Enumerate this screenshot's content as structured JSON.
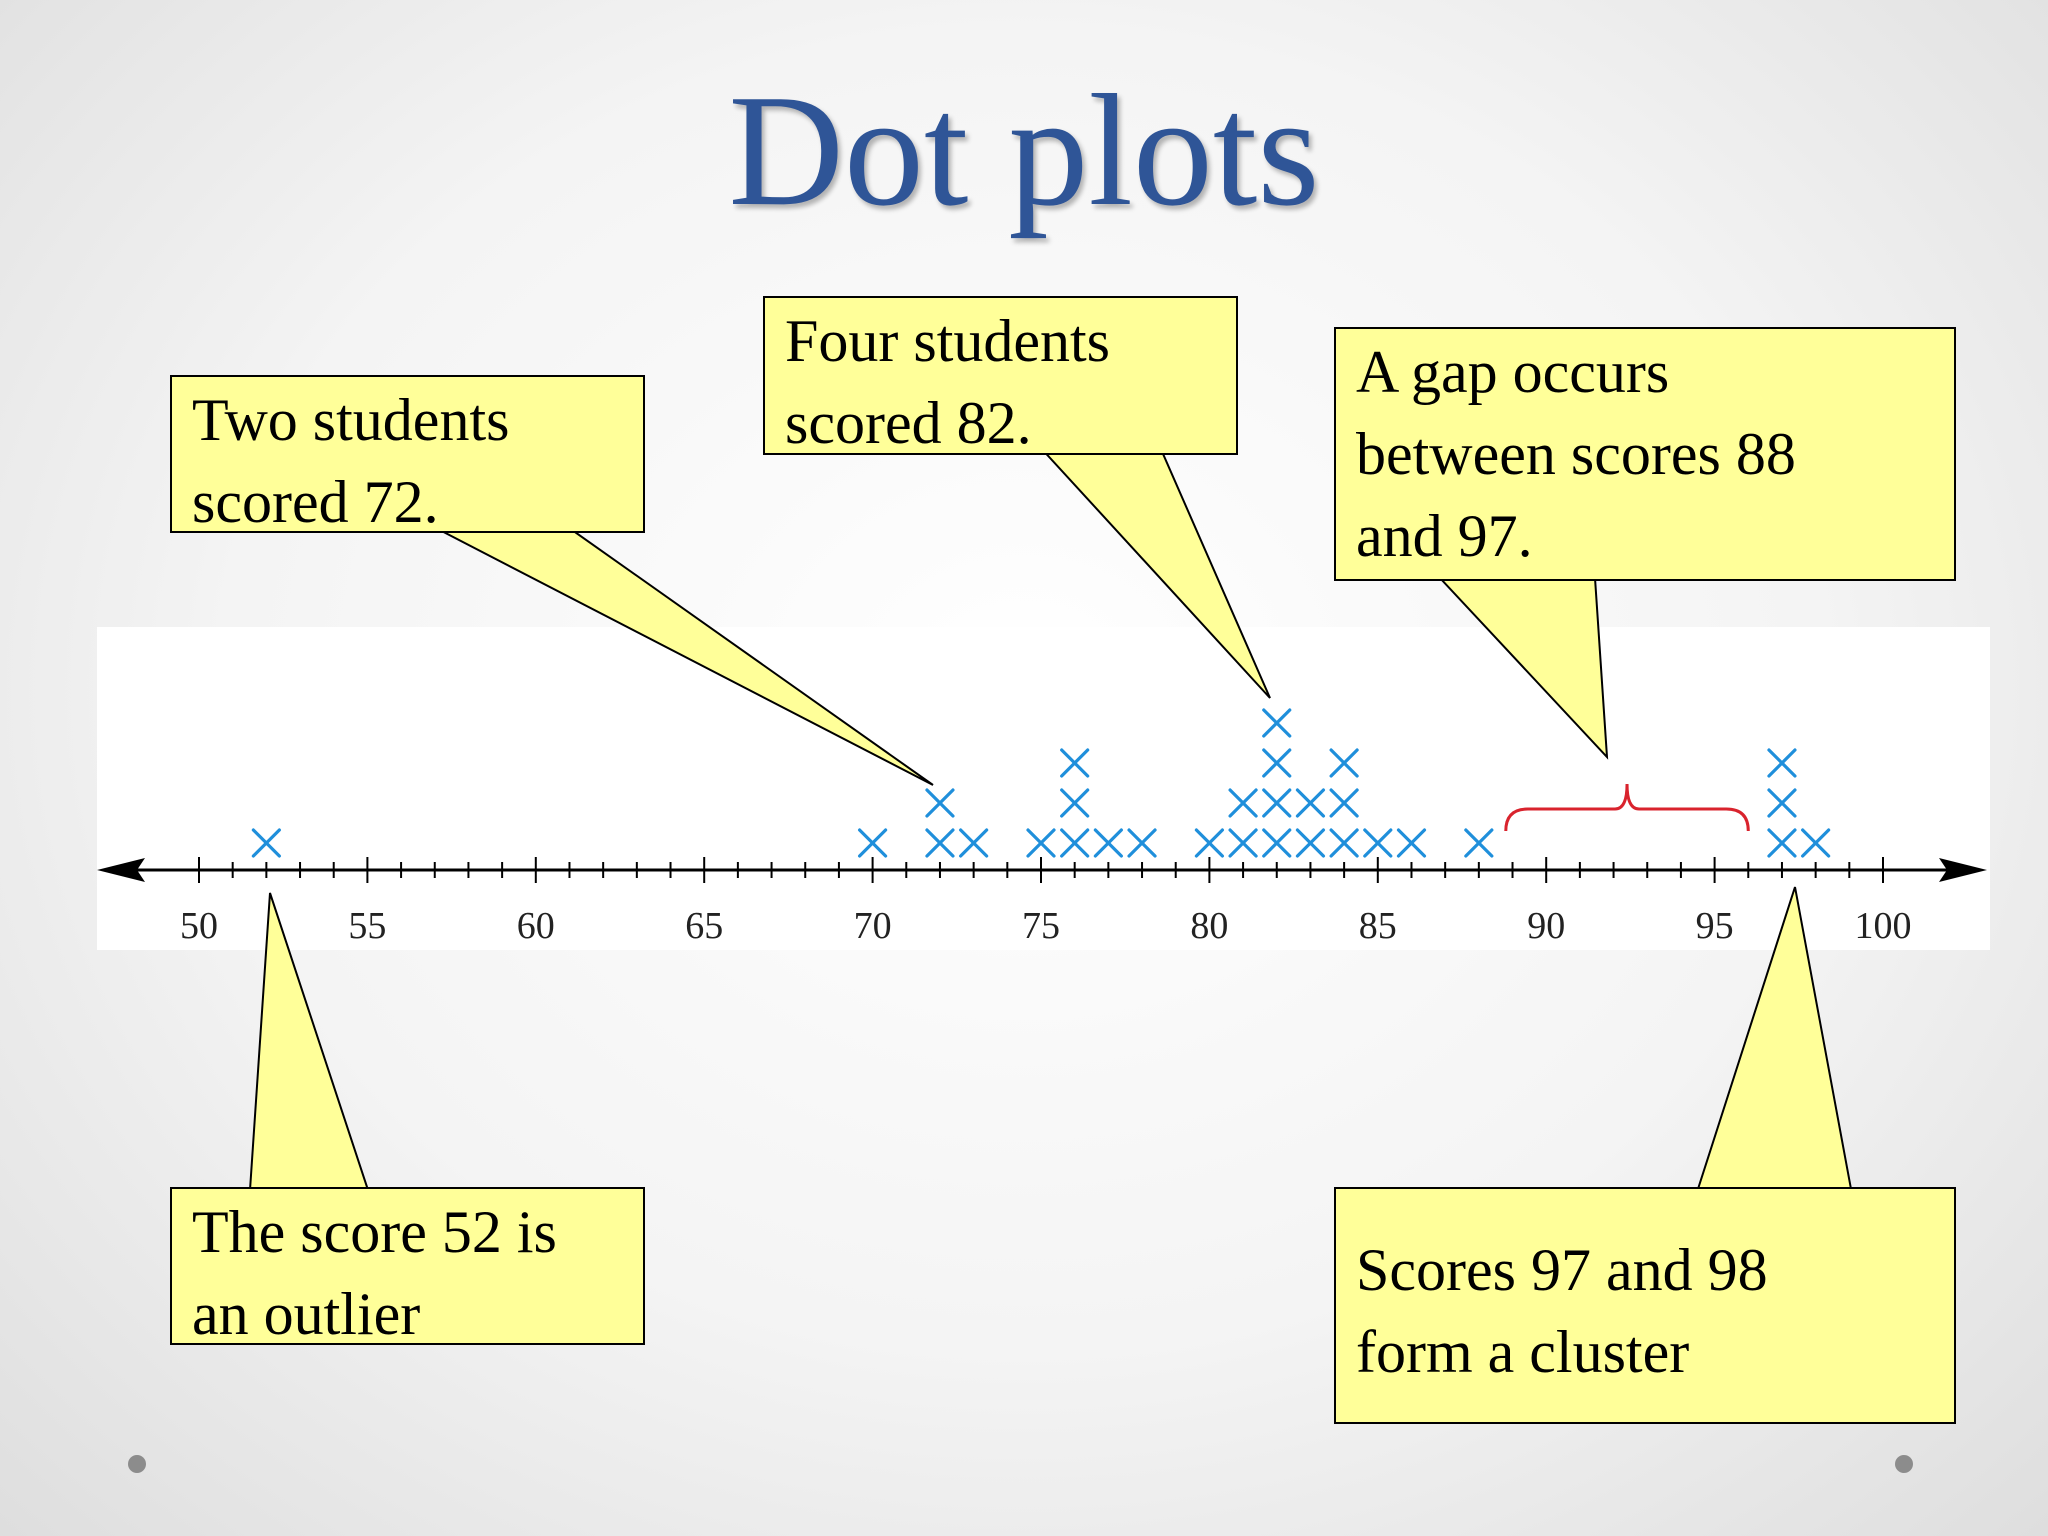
{
  "slide": {
    "title": "Dot plots",
    "title_color": "#2f5597",
    "callout_fill": "#ffff99"
  },
  "callouts": {
    "two_students_72": "Two students\nscored 72.",
    "four_students_82": "Four students\nscored 82.",
    "gap": "A gap occurs\nbetween scores 88\nand 97.",
    "outlier": "The score 52 is\nan outlier",
    "cluster": "Scores 97 and 98\nform a cluster"
  },
  "chart_data": {
    "type": "scatter",
    "style": "dot plot",
    "marker": "x",
    "marker_color": "#1f8fdb",
    "xlim": [
      50,
      100
    ],
    "tick_labels": [
      "50",
      "55",
      "60",
      "65",
      "70",
      "75",
      "80",
      "85",
      "90",
      "95",
      "100"
    ],
    "points": [
      {
        "score": 52,
        "count": 1
      },
      {
        "score": 70,
        "count": 1
      },
      {
        "score": 72,
        "count": 2
      },
      {
        "score": 73,
        "count": 1
      },
      {
        "score": 75,
        "count": 1
      },
      {
        "score": 76,
        "count": 3
      },
      {
        "score": 77,
        "count": 1
      },
      {
        "score": 78,
        "count": 1
      },
      {
        "score": 80,
        "count": 1
      },
      {
        "score": 81,
        "count": 2
      },
      {
        "score": 82,
        "count": 4
      },
      {
        "score": 83,
        "count": 2
      },
      {
        "score": 84,
        "count": 3
      },
      {
        "score": 85,
        "count": 1
      },
      {
        "score": 86,
        "count": 1
      },
      {
        "score": 88,
        "count": 1
      },
      {
        "score": 97,
        "count": 3
      },
      {
        "score": 98,
        "count": 1
      }
    ],
    "gap": [
      88,
      97
    ],
    "gap_bracket_color": "#d9232d"
  }
}
